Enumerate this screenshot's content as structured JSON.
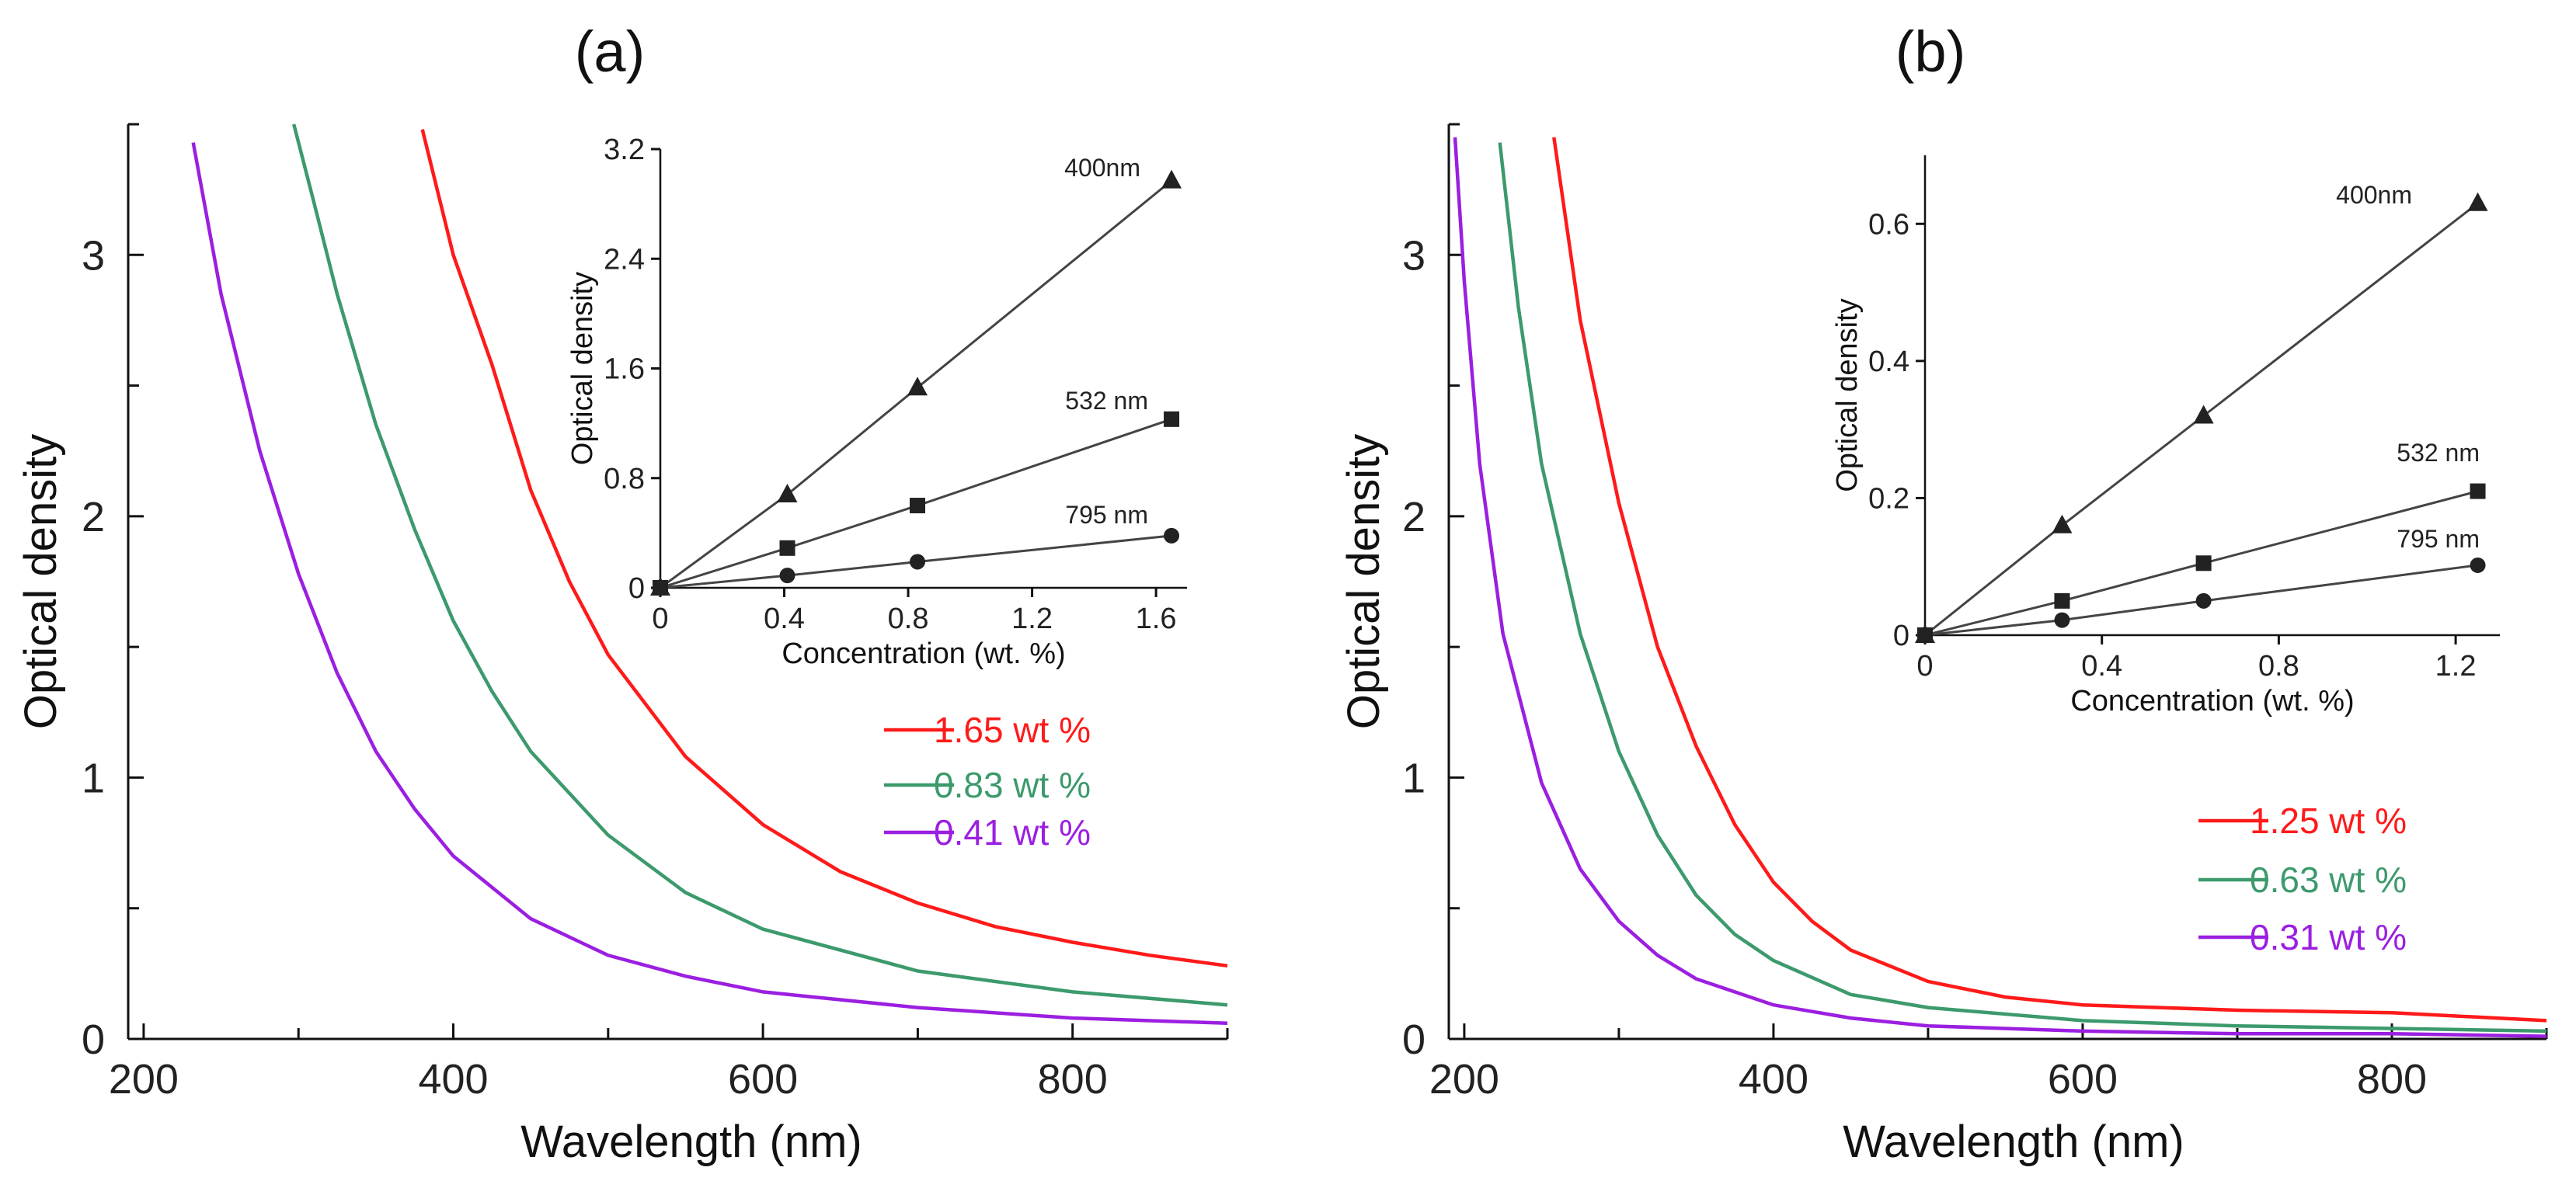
{
  "colors": {
    "red": "#ff1a1a",
    "green": "#3c9a6c",
    "purple": "#9b1fe0",
    "axis": "#111111"
  },
  "chart_data": [
    {
      "id": "a",
      "type": "line",
      "panel_label": "(a)",
      "xlabel": "Wavelength (nm)",
      "ylabel": "Optical density",
      "xlim": [
        190,
        900
      ],
      "ylim": [
        0,
        3.5
      ],
      "xticks": [
        200,
        400,
        600,
        800
      ],
      "yticks": [
        0,
        1,
        2,
        3
      ],
      "series": [
        {
          "name": "1.65 wt %",
          "color": "#ff1a1a",
          "x": [
            380,
            400,
            425,
            450,
            475,
            500,
            550,
            600,
            650,
            700,
            750,
            800,
            850,
            900
          ],
          "y": [
            3.48,
            3.0,
            2.58,
            2.1,
            1.75,
            1.47,
            1.08,
            0.82,
            0.64,
            0.52,
            0.43,
            0.37,
            0.32,
            0.28
          ]
        },
        {
          "name": "0.83 wt %",
          "color": "#3c9a6c",
          "x": [
            297,
            310,
            325,
            350,
            375,
            400,
            425,
            450,
            500,
            550,
            600,
            700,
            800,
            900
          ],
          "y": [
            3.5,
            3.2,
            2.85,
            2.35,
            1.95,
            1.6,
            1.33,
            1.1,
            0.78,
            0.56,
            0.42,
            0.26,
            0.18,
            0.13
          ]
        },
        {
          "name": "0.41 wt %",
          "color": "#9b1fe0",
          "x": [
            232,
            250,
            275,
            300,
            325,
            350,
            375,
            400,
            450,
            500,
            550,
            600,
            700,
            800,
            900
          ],
          "y": [
            3.43,
            2.85,
            2.25,
            1.78,
            1.4,
            1.1,
            0.88,
            0.7,
            0.46,
            0.32,
            0.24,
            0.18,
            0.12,
            0.08,
            0.06
          ]
        }
      ],
      "inset": {
        "type": "scatter",
        "xlabel": "Concentration (wt. %)",
        "ylabel": "Optical density",
        "xlim": [
          0,
          1.7
        ],
        "ylim": [
          0,
          3.2
        ],
        "xticks": [
          0,
          0.4,
          0.8,
          1.2,
          1.6
        ],
        "xtick_labels": [
          "0",
          "0.4",
          "0.8",
          "1.2",
          "1.6"
        ],
        "yticks": [
          0,
          0.8,
          1.6,
          2.4,
          3.2
        ],
        "ytick_labels": [
          "0",
          "0.8",
          "1.6",
          "2.4",
          "3.2"
        ],
        "series": [
          {
            "name": "400nm",
            "marker": "triangle",
            "x": [
              0,
              0.41,
              0.83,
              1.65
            ],
            "y": [
              0,
              0.68,
              1.46,
              2.97
            ]
          },
          {
            "name": "532 nm",
            "marker": "square",
            "x": [
              0,
              0.41,
              0.83,
              1.65
            ],
            "y": [
              0,
              0.29,
              0.6,
              1.23
            ]
          },
          {
            "name": "795 nm",
            "marker": "circle",
            "x": [
              0,
              0.41,
              0.83,
              1.65
            ],
            "y": [
              0,
              0.09,
              0.19,
              0.38
            ]
          }
        ]
      }
    },
    {
      "id": "b",
      "type": "line",
      "panel_label": "(b)",
      "xlabel": "Wavelength (nm)",
      "ylabel": "Optical density",
      "xlim": [
        190,
        900
      ],
      "ylim": [
        0,
        3.5
      ],
      "xticks": [
        200,
        400,
        600,
        800
      ],
      "yticks": [
        0,
        1,
        2,
        3
      ],
      "series": [
        {
          "name": "1.25 wt %",
          "color": "#ff1a1a",
          "x": [
            258,
            275,
            300,
            325,
            350,
            375,
            400,
            425,
            450,
            500,
            550,
            600,
            700,
            800,
            900
          ],
          "y": [
            3.45,
            2.75,
            2.05,
            1.5,
            1.12,
            0.82,
            0.6,
            0.45,
            0.34,
            0.22,
            0.16,
            0.13,
            0.11,
            0.1,
            0.07
          ]
        },
        {
          "name": "0.63 wt %",
          "color": "#3c9a6c",
          "x": [
            223,
            235,
            250,
            275,
            300,
            325,
            350,
            375,
            400,
            450,
            500,
            600,
            700,
            800,
            900
          ],
          "y": [
            3.43,
            2.8,
            2.2,
            1.55,
            1.1,
            0.78,
            0.55,
            0.4,
            0.3,
            0.17,
            0.12,
            0.07,
            0.05,
            0.04,
            0.03
          ]
        },
        {
          "name": "0.31 wt %",
          "color": "#9b1fe0",
          "x": [
            194,
            200,
            210,
            225,
            250,
            275,
            300,
            325,
            350,
            400,
            450,
            500,
            600,
            700,
            800,
            900
          ],
          "y": [
            3.45,
            2.9,
            2.2,
            1.55,
            0.98,
            0.65,
            0.45,
            0.32,
            0.23,
            0.13,
            0.08,
            0.05,
            0.03,
            0.02,
            0.02,
            0.01
          ]
        }
      ],
      "inset": {
        "type": "scatter",
        "xlabel": "Concentration (wt. %)",
        "ylabel": "Optical density",
        "xlim": [
          0,
          1.3
        ],
        "ylim": [
          0,
          0.7
        ],
        "xticks": [
          0,
          0.4,
          0.8,
          1.2
        ],
        "xtick_labels": [
          "0",
          "0.4",
          "0.8",
          "1.2"
        ],
        "yticks": [
          0,
          0.2,
          0.4,
          0.6
        ],
        "ytick_labels": [
          "0",
          "0.2",
          "0.4",
          "0.6"
        ],
        "series": [
          {
            "name": "400nm",
            "marker": "triangle",
            "x": [
              0,
              0.31,
              0.63,
              1.25
            ],
            "y": [
              0,
              0.16,
              0.32,
              0.63
            ]
          },
          {
            "name": "532 nm",
            "marker": "square",
            "x": [
              0,
              0.31,
              0.63,
              1.25
            ],
            "y": [
              0,
              0.05,
              0.105,
              0.21
            ]
          },
          {
            "name": "795 nm",
            "marker": "circle",
            "x": [
              0,
              0.31,
              0.63,
              1.25
            ],
            "y": [
              0,
              0.022,
              0.05,
              0.102
            ]
          }
        ]
      }
    }
  ]
}
